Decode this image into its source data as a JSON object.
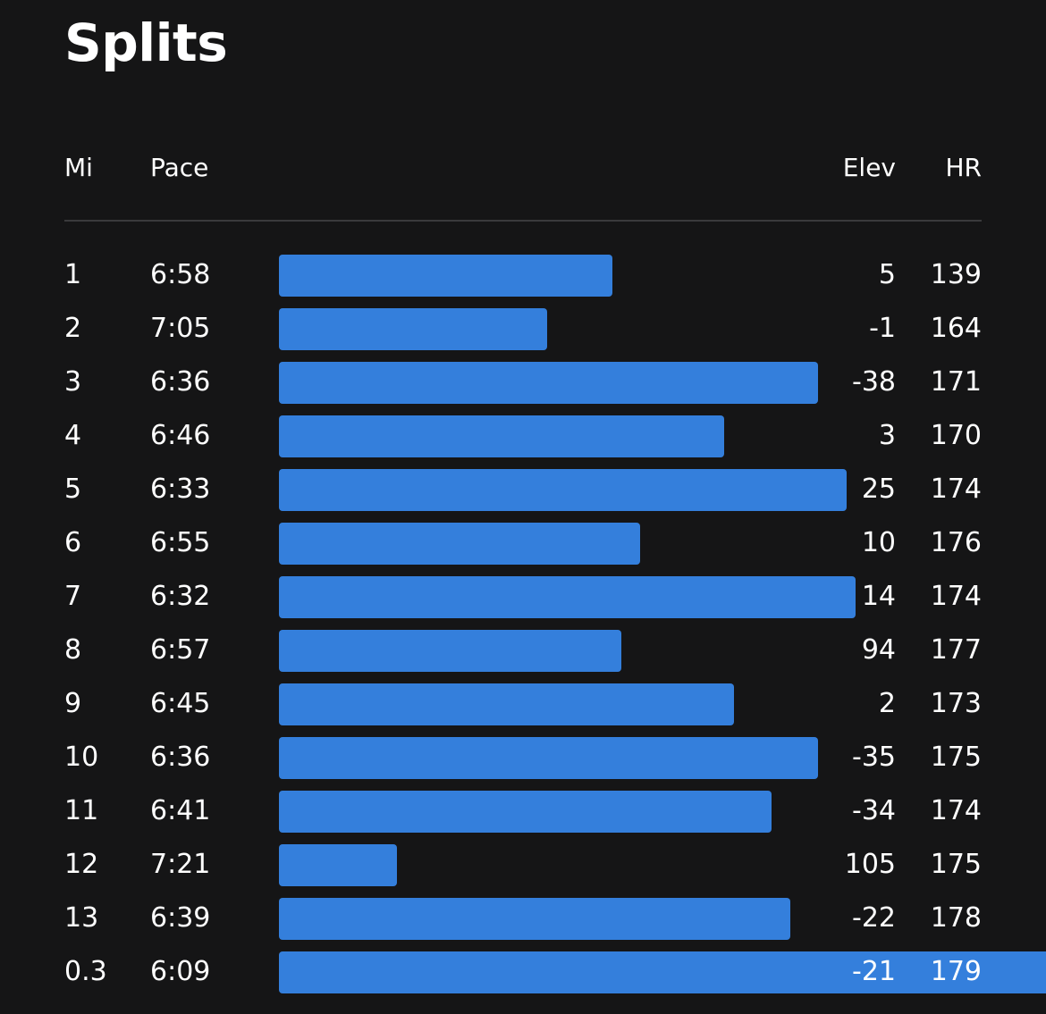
{
  "title": "Splits",
  "columns": {
    "mi": "Mi",
    "pace": "Pace",
    "elev": "Elev",
    "hr": "HR"
  },
  "colors": {
    "background": "#151516",
    "bar": "#347fdc",
    "divider": "#3a3a3c",
    "text": "#ffffff"
  },
  "splits": [
    {
      "mi": "1",
      "pace": "6:58",
      "elev": "5",
      "hr": "139"
    },
    {
      "mi": "2",
      "pace": "7:05",
      "elev": "-1",
      "hr": "164"
    },
    {
      "mi": "3",
      "pace": "6:36",
      "elev": "-38",
      "hr": "171"
    },
    {
      "mi": "4",
      "pace": "6:46",
      "elev": "3",
      "hr": "170"
    },
    {
      "mi": "5",
      "pace": "6:33",
      "elev": "25",
      "hr": "174"
    },
    {
      "mi": "6",
      "pace": "6:55",
      "elev": "10",
      "hr": "176"
    },
    {
      "mi": "7",
      "pace": "6:32",
      "elev": "14",
      "hr": "174"
    },
    {
      "mi": "8",
      "pace": "6:57",
      "elev": "94",
      "hr": "177"
    },
    {
      "mi": "9",
      "pace": "6:45",
      "elev": "2",
      "hr": "173"
    },
    {
      "mi": "10",
      "pace": "6:36",
      "elev": "-35",
      "hr": "175"
    },
    {
      "mi": "11",
      "pace": "6:41",
      "elev": "-34",
      "hr": "174"
    },
    {
      "mi": "12",
      "pace": "7:21",
      "elev": "105",
      "hr": "175"
    },
    {
      "mi": "13",
      "pace": "6:39",
      "elev": "-22",
      "hr": "178"
    },
    {
      "mi": "0.3",
      "pace": "6:09",
      "elev": "-21",
      "hr": "179"
    }
  ]
}
